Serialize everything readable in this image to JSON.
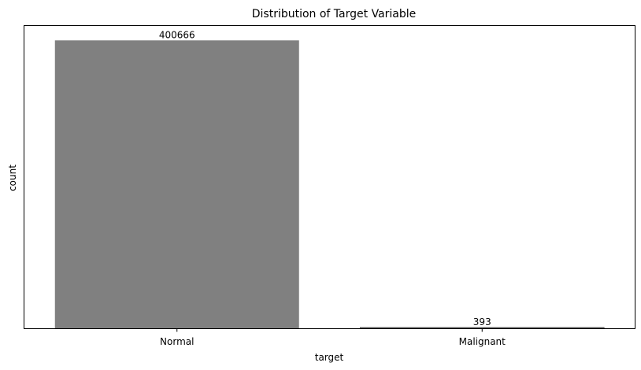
{
  "chart_data": {
    "type": "bar",
    "title": "Distribution of Target Variable",
    "xlabel": "target",
    "ylabel": "count",
    "categories": [
      "Normal",
      "Malignant"
    ],
    "values": [
      400666,
      393
    ],
    "data_labels": [
      "400666",
      "393"
    ],
    "ylim": [
      0,
      420700
    ],
    "y_ticks_visible": false,
    "grid": false,
    "legend": "none",
    "colors": {
      "bar": "#808080",
      "axes": "#000000",
      "background": "#ffffff"
    }
  }
}
